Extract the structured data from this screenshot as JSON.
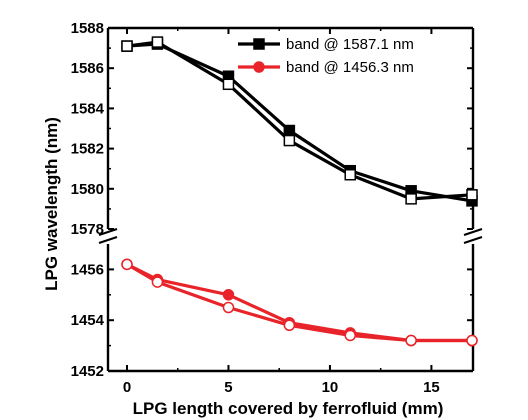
{
  "chart_data": {
    "type": "line",
    "title": "",
    "xlabel": "LPG length covered by ferrofluid (mm)",
    "ylabel": "LPG wavelength (nm)",
    "xlim": [
      -1,
      18
    ],
    "x_ticks": [
      0,
      5,
      10,
      15
    ],
    "x_tick_labels": [
      "0",
      "5",
      "10",
      "15"
    ],
    "axis_break": true,
    "grid": false,
    "legend_position": "top-right",
    "panels": [
      {
        "name": "upper",
        "ylim": [
          1578,
          1588
        ],
        "y_ticks": [
          1578,
          1580,
          1582,
          1584,
          1586,
          1588
        ],
        "y_tick_labels": [
          "1578",
          "1580",
          "1582",
          "1584",
          "1586",
          "1588"
        ],
        "series": [
          {
            "name": "band @ 1587.1 nm",
            "label": "band @ 1587.1 nm",
            "color": "#000000",
            "marker": "square",
            "filled": true,
            "x": [
              0,
              1.5,
              5,
              8,
              11,
              14,
              17
            ],
            "y": [
              1587.1,
              1587.2,
              1585.6,
              1582.9,
              1580.9,
              1579.9,
              1579.4
            ]
          },
          {
            "name": "",
            "color": "#000000",
            "marker": "square",
            "filled": false,
            "x": [
              0,
              1.5,
              5,
              8,
              11,
              14,
              17
            ],
            "y": [
              1587.1,
              1587.3,
              1585.2,
              1582.4,
              1580.7,
              1579.5,
              1579.7
            ]
          }
        ]
      },
      {
        "name": "lower",
        "ylim": [
          1452,
          1457
        ],
        "y_ticks": [
          1452,
          1454,
          1456
        ],
        "y_tick_labels": [
          "1452",
          "1454",
          "1456"
        ],
        "series": [
          {
            "name": "band @ 1456.3 nm",
            "label": "band @ 1456.3 nm",
            "color": "#e8242a",
            "marker": "circle",
            "filled": true,
            "x": [
              0,
              1.5,
              5,
              8,
              11,
              14,
              17
            ],
            "y": [
              1456.2,
              1455.6,
              1455.0,
              1453.9,
              1453.5,
              1453.2,
              1453.2
            ]
          },
          {
            "name": "",
            "color": "#e8242a",
            "marker": "circle",
            "filled": false,
            "x": [
              0,
              1.5,
              5,
              8,
              11,
              14,
              17
            ],
            "y": [
              1456.2,
              1455.5,
              1454.5,
              1453.8,
              1453.4,
              1453.2,
              1453.2
            ]
          }
        ]
      }
    ]
  }
}
